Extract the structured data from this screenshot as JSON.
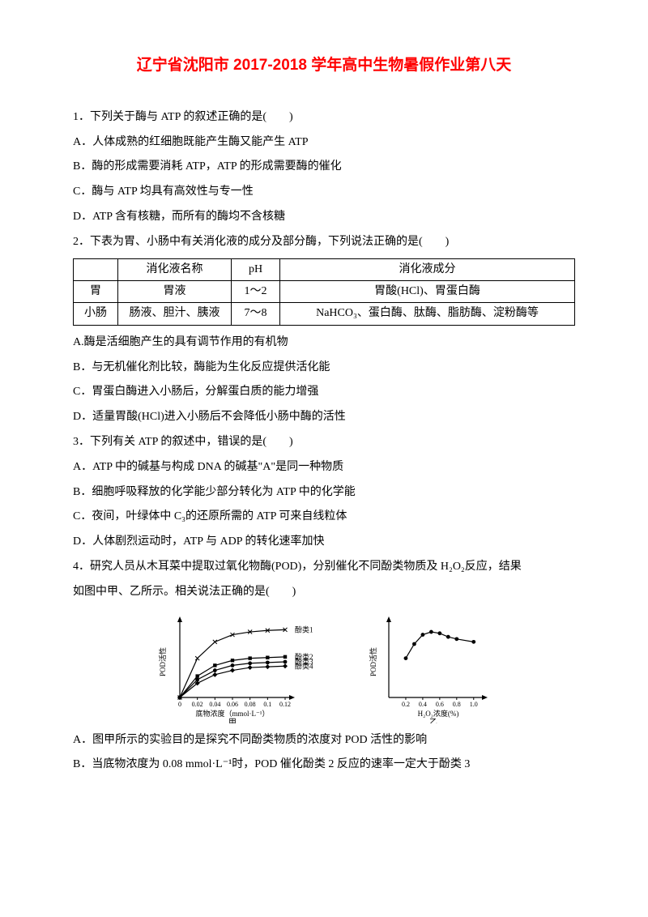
{
  "title": "辽宁省沈阳市 2017-2018 学年高中生物暑假作业第八天",
  "q1": {
    "stem": "1．下列关于酶与 ATP 的叙述正确的是(　　)",
    "a": "A．人体成熟的红细胞既能产生酶又能产生 ATP",
    "b": "B．酶的形成需要消耗 ATP，ATP 的形成需要酶的催化",
    "c": "C．酶与 ATP 均具有高效性与专一性",
    "d": "D．ATP 含有核糖，而所有的酶均不含核糖"
  },
  "q2": {
    "stem": "2．下表为胃、小肠中有关消化液的成分及部分酶，下列说法正确的是(　　)",
    "table": {
      "headers": [
        "",
        "消化液名称",
        "pH",
        "消化液成分"
      ],
      "rows": [
        [
          "胃",
          "胃液",
          "1～2",
          "胃酸(HCl)、胃蛋白酶"
        ],
        [
          "小肠",
          "肠液、胆汁、胰液",
          "7～8",
          "NaHCO₃、蛋白酶、肽酶、脂肪酶、淀粉酶等"
        ]
      ]
    },
    "a": "A.酶是活细胞产生的具有调节作用的有机物",
    "b": "B．与无机催化剂比较，酶能为生化反应提供活化能",
    "c": "C．胃蛋白酶进入小肠后，分解蛋白质的能力增强",
    "d": "D．适量胃酸(HCl)进入小肠后不会降低小肠中酶的活性"
  },
  "q3": {
    "stem": "3．下列有关 ATP 的叙述中，错误的是(　　)",
    "a": "A．ATP 中的碱基与构成 DNA 的碱基\"A\"是同一种物质",
    "b": "B．细胞呼吸释放的化学能少部分转化为 ATP 中的化学能",
    "c": "C．夜间，叶绿体中 C₃的还原所需的 ATP 可来自线粒体",
    "d": "D．人体剧烈运动时，ATP 与 ADP 的转化速率加快"
  },
  "q4": {
    "stem1": "4．研究人员从木耳菜中提取过氧化物酶(POD)，分别催化不同酚类物质及 H₂O₂反应，结果",
    "stem2": "如图中甲、乙所示。相关说法正确的是(　　)",
    "a": "A．图甲所示的实验目的是探究不同酚类物质的浓度对 POD 活性的影响",
    "b": "B．当底物浓度为 0.08 mmol·L⁻¹时，POD 催化酚类 2 反应的速率一定大于酚类 3"
  },
  "chart1": {
    "ylabel": "POD活性",
    "xlabel": "底物浓度（mmol·L⁻¹）",
    "sublabel": "甲",
    "xticks": [
      "0",
      "0.02",
      "0.04",
      "0.06",
      "0.08",
      "0.1",
      "0.12"
    ],
    "series": [
      {
        "name": "酚类1",
        "marker": "x",
        "points": [
          [
            0,
            0
          ],
          [
            0.02,
            55
          ],
          [
            0.04,
            78
          ],
          [
            0.06,
            88
          ],
          [
            0.08,
            92
          ],
          [
            0.1,
            94
          ],
          [
            0.12,
            95
          ]
        ]
      },
      {
        "name": "酚类2",
        "marker": "square",
        "points": [
          [
            0,
            0
          ],
          [
            0.02,
            30
          ],
          [
            0.04,
            45
          ],
          [
            0.06,
            52
          ],
          [
            0.08,
            55
          ],
          [
            0.1,
            56
          ],
          [
            0.12,
            57
          ]
        ]
      },
      {
        "name": "酚类3",
        "marker": "circle",
        "points": [
          [
            0,
            0
          ],
          [
            0.02,
            25
          ],
          [
            0.04,
            38
          ],
          [
            0.06,
            45
          ],
          [
            0.08,
            48
          ],
          [
            0.1,
            49
          ],
          [
            0.12,
            50
          ]
        ]
      },
      {
        "name": "酚类4",
        "marker": "diamond",
        "points": [
          [
            0,
            0
          ],
          [
            0.02,
            20
          ],
          [
            0.04,
            32
          ],
          [
            0.06,
            38
          ],
          [
            0.08,
            42
          ],
          [
            0.1,
            43
          ],
          [
            0.12,
            44
          ]
        ]
      }
    ],
    "color": "#000000",
    "font_size": 9
  },
  "chart2": {
    "ylabel": "POD活性",
    "xlabel": "H₂O₂浓度(%)",
    "sublabel": "乙",
    "xticks": [
      "0.2",
      "0.4",
      "0.6",
      "0.8",
      "1.0"
    ],
    "series": [
      {
        "marker": "circle",
        "points": [
          [
            0.2,
            55
          ],
          [
            0.3,
            75
          ],
          [
            0.4,
            88
          ],
          [
            0.5,
            92
          ],
          [
            0.6,
            90
          ],
          [
            0.7,
            85
          ],
          [
            0.8,
            82
          ],
          [
            1.0,
            78
          ]
        ]
      }
    ],
    "color": "#000000",
    "font_size": 9
  }
}
